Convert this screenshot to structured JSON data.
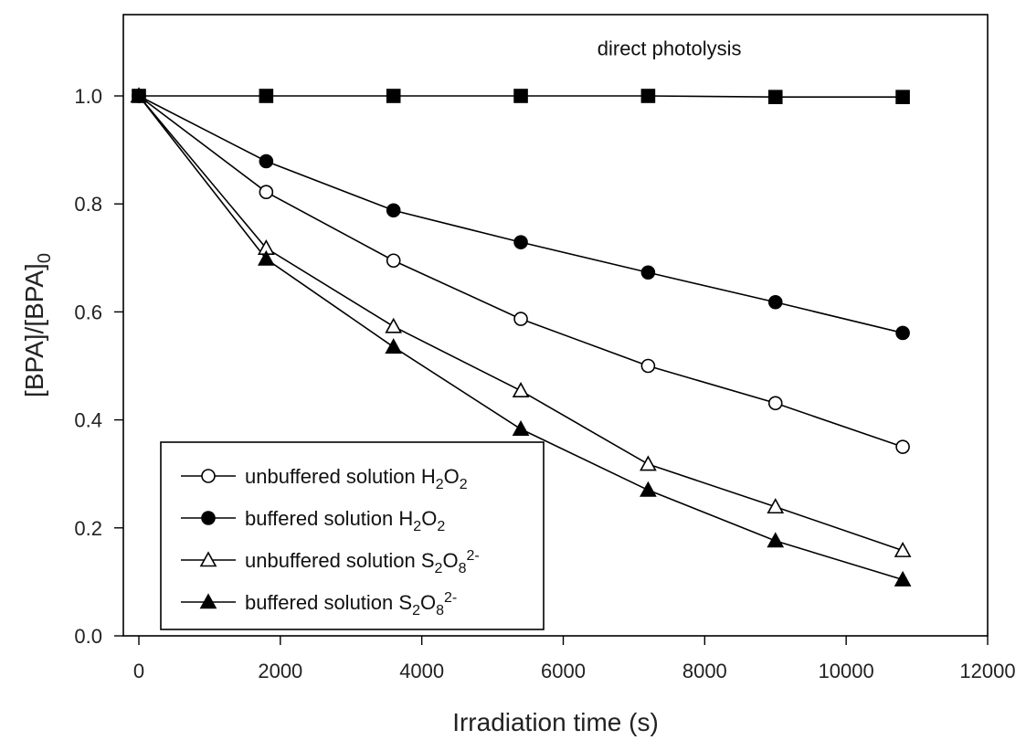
{
  "chart_data": {
    "type": "line",
    "xlabel": "Irradiation time (s)",
    "ylabel": {
      "main": "[BPA]/[BPA]",
      "sub": "0"
    },
    "xlim": [
      0,
      12000
    ],
    "ylim": [
      0.0,
      1.15
    ],
    "x_ticks": [
      0,
      2000,
      4000,
      6000,
      8000,
      10000,
      12000
    ],
    "y_ticks": [
      0.0,
      0.2,
      0.4,
      0.6,
      0.8,
      1.0
    ],
    "y_tick_labels": [
      "0.0",
      "0.2",
      "0.4",
      "0.6",
      "0.8",
      "1.0"
    ],
    "grid": false,
    "legend_position": "bottom-left",
    "annotations": [
      {
        "text": "direct photolysis",
        "x": 7500,
        "y": 1.075
      }
    ],
    "series": [
      {
        "name": "direct photolysis",
        "marker": "square-filled",
        "x": [
          0,
          1800,
          3600,
          5400,
          7200,
          9000,
          10800
        ],
        "y": [
          1.0,
          1.0,
          1.0,
          1.0,
          1.0,
          0.998,
          0.998
        ],
        "in_legend": false
      },
      {
        "name": "unbuffered solution H2O2",
        "legend_parts": [
          {
            "text": "unbuffered solution H"
          },
          {
            "text": "2",
            "shift": "sub"
          },
          {
            "text": "O"
          },
          {
            "text": "2",
            "shift": "sub"
          }
        ],
        "marker": "circle-open",
        "x": [
          0,
          1800,
          3600,
          5400,
          7200,
          9000,
          10800
        ],
        "y": [
          1.0,
          0.822,
          0.695,
          0.587,
          0.5,
          0.431,
          0.35
        ],
        "in_legend": true
      },
      {
        "name": "buffered solution H2O2",
        "legend_parts": [
          {
            "text": "buffered solution H"
          },
          {
            "text": "2",
            "shift": "sub"
          },
          {
            "text": "O"
          },
          {
            "text": "2",
            "shift": "sub"
          }
        ],
        "marker": "circle-filled",
        "x": [
          0,
          1800,
          3600,
          5400,
          7200,
          9000,
          10800
        ],
        "y": [
          1.0,
          0.879,
          0.788,
          0.729,
          0.673,
          0.618,
          0.561
        ],
        "in_legend": true
      },
      {
        "name": "unbuffered solution S2O8 2-",
        "legend_parts": [
          {
            "text": "unbuffered solution S"
          },
          {
            "text": "2",
            "shift": "sub"
          },
          {
            "text": "O"
          },
          {
            "text": "8",
            "shift": "sub"
          },
          {
            "text": "2-",
            "shift": "super"
          }
        ],
        "marker": "triangle-open",
        "x": [
          0,
          1800,
          3600,
          5400,
          7200,
          9000,
          10800
        ],
        "y": [
          1.0,
          0.718,
          0.573,
          0.454,
          0.318,
          0.239,
          0.158
        ],
        "in_legend": true
      },
      {
        "name": "buffered solution S2O8 2-",
        "legend_parts": [
          {
            "text": "buffered solution S"
          },
          {
            "text": "2",
            "shift": "sub"
          },
          {
            "text": "O"
          },
          {
            "text": "8",
            "shift": "sub"
          },
          {
            "text": "2-",
            "shift": "super"
          }
        ],
        "marker": "triangle-filled",
        "x": [
          0,
          1800,
          3600,
          5400,
          7200,
          9000,
          10800
        ],
        "y": [
          1.0,
          0.698,
          0.535,
          0.383,
          0.27,
          0.176,
          0.104
        ],
        "in_legend": true
      }
    ]
  }
}
